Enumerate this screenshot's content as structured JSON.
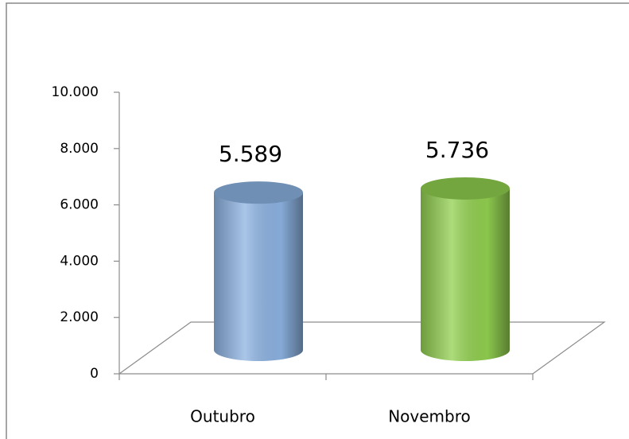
{
  "chart_data": {
    "type": "bar3d",
    "categories": [
      "Outubro",
      "Novembro"
    ],
    "values": [
      5589,
      5736
    ],
    "value_labels": [
      "5.589",
      "5.736"
    ],
    "colors": [
      "#8db3e2",
      "#92d050"
    ],
    "ylim": [
      0,
      10000
    ],
    "yticks": [
      0,
      {
        "value": 2000,
        "label": "2.000"
      },
      {
        "value": 4000,
        "label": "4.000"
      },
      {
        "value": 6000,
        "label": "6.000"
      },
      {
        "value": 8000,
        "label": "8.000"
      },
      {
        "value": 10000,
        "label": "10.000"
      }
    ],
    "grid": false
  }
}
